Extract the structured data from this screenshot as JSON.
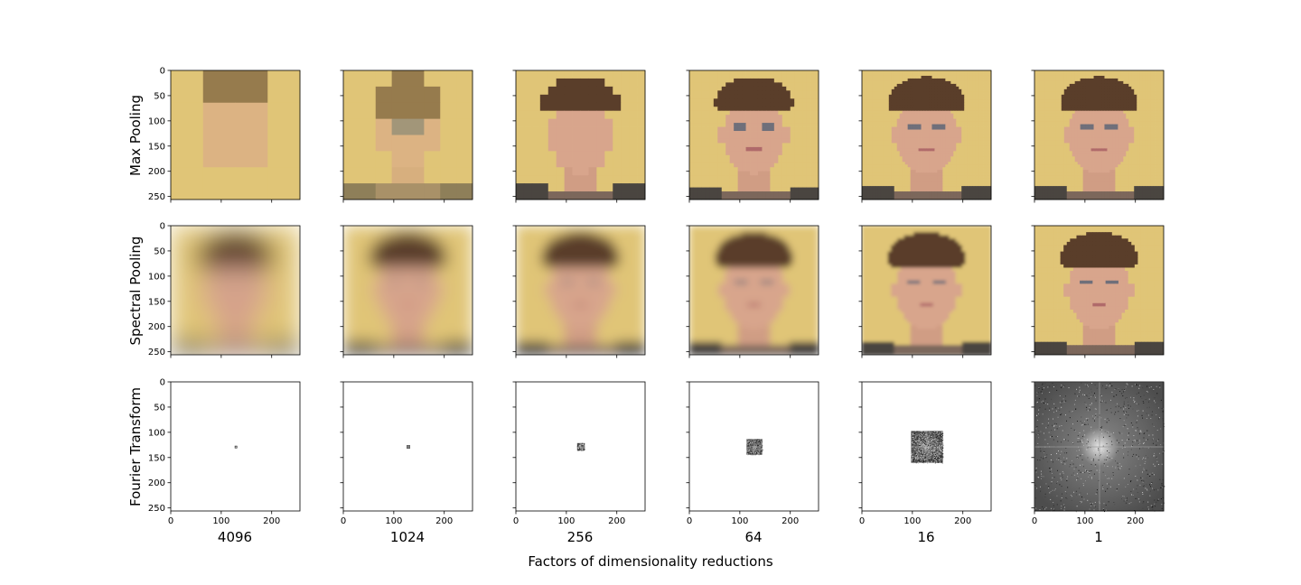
{
  "chart_data": {
    "type": "image-grid",
    "row_labels": [
      "Max Pooling",
      "Spectral Pooling",
      "Fourier Transform"
    ],
    "col_labels": [
      "4096",
      "1024",
      "256",
      "64",
      "16",
      "1"
    ],
    "xlabel": "Factors of dimensionality reductions",
    "image_extent": [
      0,
      256
    ],
    "y_ticks": [
      "0",
      "50",
      "100",
      "150",
      "200",
      "250"
    ],
    "x_ticks": [
      "0",
      "100",
      "200"
    ],
    "max_pool_grid_sizes": [
      4,
      8,
      16,
      32,
      64,
      256
    ],
    "spectral_blur_levels": [
      6,
      4,
      3,
      1.8,
      0.8,
      0
    ],
    "fourier_kept_square": [
      3,
      7,
      15,
      31,
      63,
      256
    ]
  },
  "colors": {
    "background": "#e0c577",
    "skin": "#d8a58c",
    "hair": "#5a3e2a",
    "shirt": "#4a4540",
    "fourier_bg": "#ffffff",
    "fourier_spectrum": "#555555"
  }
}
